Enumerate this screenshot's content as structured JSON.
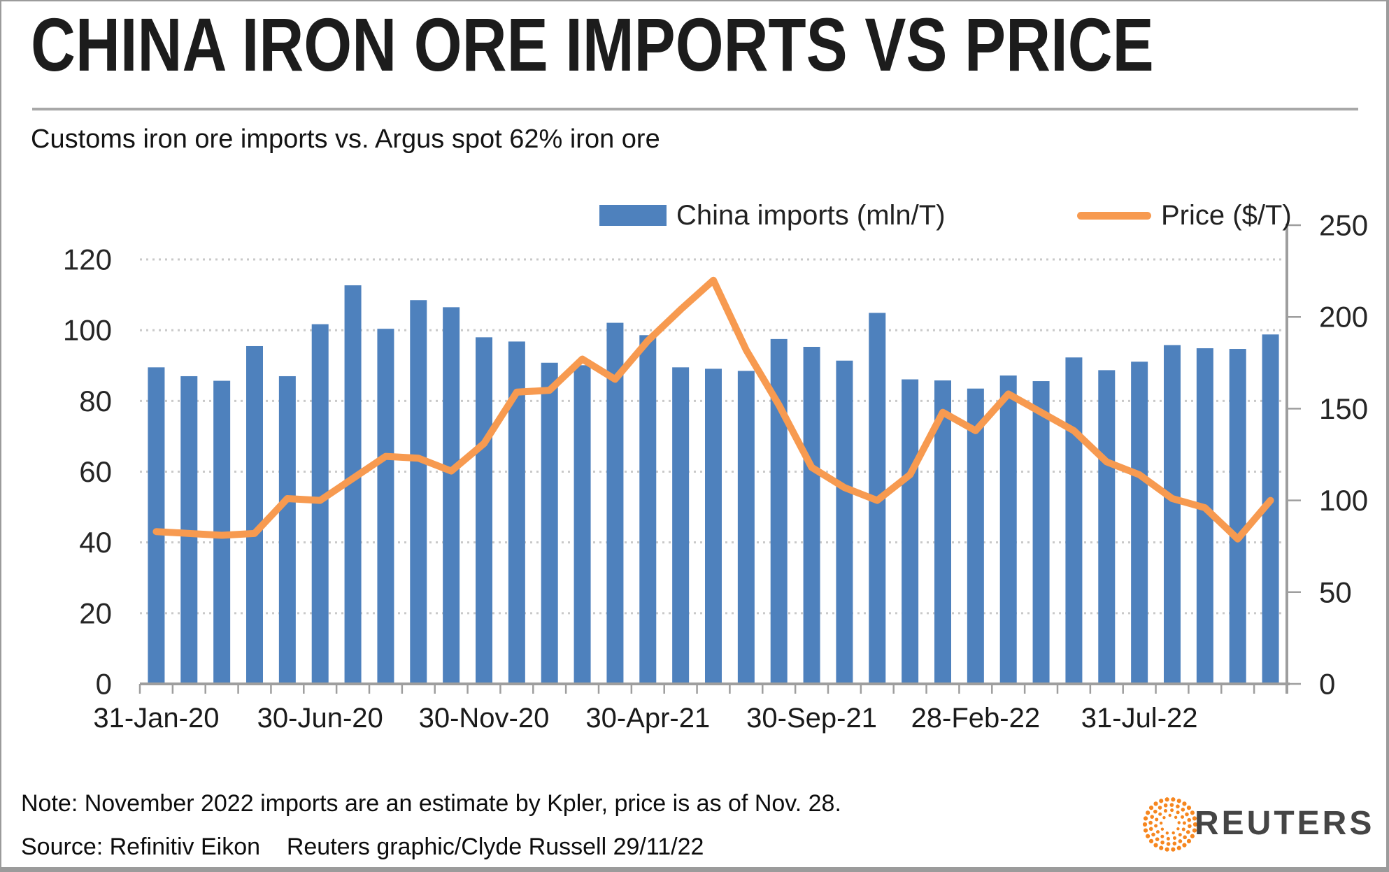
{
  "header": {
    "title": "CHINA IRON ORE IMPORTS VS PRICE",
    "subtitle": "Customs iron ore imports vs. Argus spot 62% iron ore"
  },
  "legend": [
    {
      "label": "China imports (mln/T)",
      "type": "bar",
      "color": "#4e81bd"
    },
    {
      "label": "Price ($/T)",
      "type": "line",
      "color": "#f79a50"
    }
  ],
  "footer": {
    "note": "Note: November 2022 imports are an estimate by Kpler, price is as of Nov. 28.",
    "source": "Source: Refinitiv Eikon    Reuters graphic/Clyde Russell 29/11/22",
    "brand": "REUTERS",
    "brand_color": "#f6861f"
  },
  "chart_data": {
    "type": "bar+line",
    "title": "CHINA IRON ORE IMPORTS VS PRICE",
    "subtitle": "Customs iron ore imports vs. Argus spot 62% iron ore",
    "grid": "horizontal-dotted",
    "legend_position": "top",
    "x": [
      "Jan-20",
      "Feb-20",
      "Mar-20",
      "Apr-20",
      "May-20",
      "Jun-20",
      "Jul-20",
      "Aug-20",
      "Sep-20",
      "Oct-20",
      "Nov-20",
      "Dec-20",
      "Jan-21",
      "Feb-21",
      "Mar-21",
      "Apr-21",
      "May-21",
      "Jun-21",
      "Jul-21",
      "Aug-21",
      "Sep-21",
      "Oct-21",
      "Nov-21",
      "Dec-21",
      "Jan-22",
      "Feb-22",
      "Mar-22",
      "Apr-22",
      "May-22",
      "Jun-22",
      "Jul-22",
      "Aug-22",
      "Sep-22",
      "Oct-22",
      "Nov-22"
    ],
    "x_tick_labels": [
      "31-Jan-20",
      "30-Jun-20",
      "30-Nov-20",
      "30-Apr-21",
      "30-Sep-21",
      "28-Feb-22",
      "31-Jul-22"
    ],
    "x_tick_positions": [
      0,
      5,
      10,
      15,
      20,
      25,
      30
    ],
    "series": [
      {
        "name": "China imports (mln/T)",
        "type": "bar",
        "axis": "left",
        "color": "#4e81bd",
        "values": [
          89.5,
          87.0,
          85.7,
          95.5,
          87.0,
          101.7,
          112.7,
          100.4,
          108.5,
          106.5,
          98.0,
          96.8,
          90.8,
          90.1,
          102.1,
          98.6,
          89.5,
          89.1,
          88.5,
          97.5,
          95.3,
          91.4,
          104.9,
          86.1,
          85.8,
          83.5,
          87.2,
          85.6,
          92.3,
          88.7,
          91.1,
          95.8,
          94.9,
          94.7,
          98.8
        ]
      },
      {
        "name": "Price ($/T)",
        "type": "line",
        "axis": "right",
        "color": "#f79a50",
        "values": [
          83,
          82,
          81,
          82,
          101,
          100,
          112,
          124,
          123,
          116,
          131,
          159,
          160,
          177,
          166,
          187,
          204,
          220,
          182,
          152,
          118,
          107,
          100,
          114,
          148,
          138,
          158,
          148,
          138,
          121,
          114,
          101,
          96,
          79,
          100
        ]
      }
    ],
    "left_axis": {
      "label": "China imports (mln/T)",
      "ticks": [
        0,
        20,
        40,
        60,
        80,
        100,
        120
      ],
      "min": 0,
      "max": 129.7
    },
    "right_axis": {
      "label": "Price ($/T)",
      "ticks": [
        0,
        50,
        100,
        150,
        200,
        250
      ],
      "min": 0,
      "max": 250
    }
  }
}
